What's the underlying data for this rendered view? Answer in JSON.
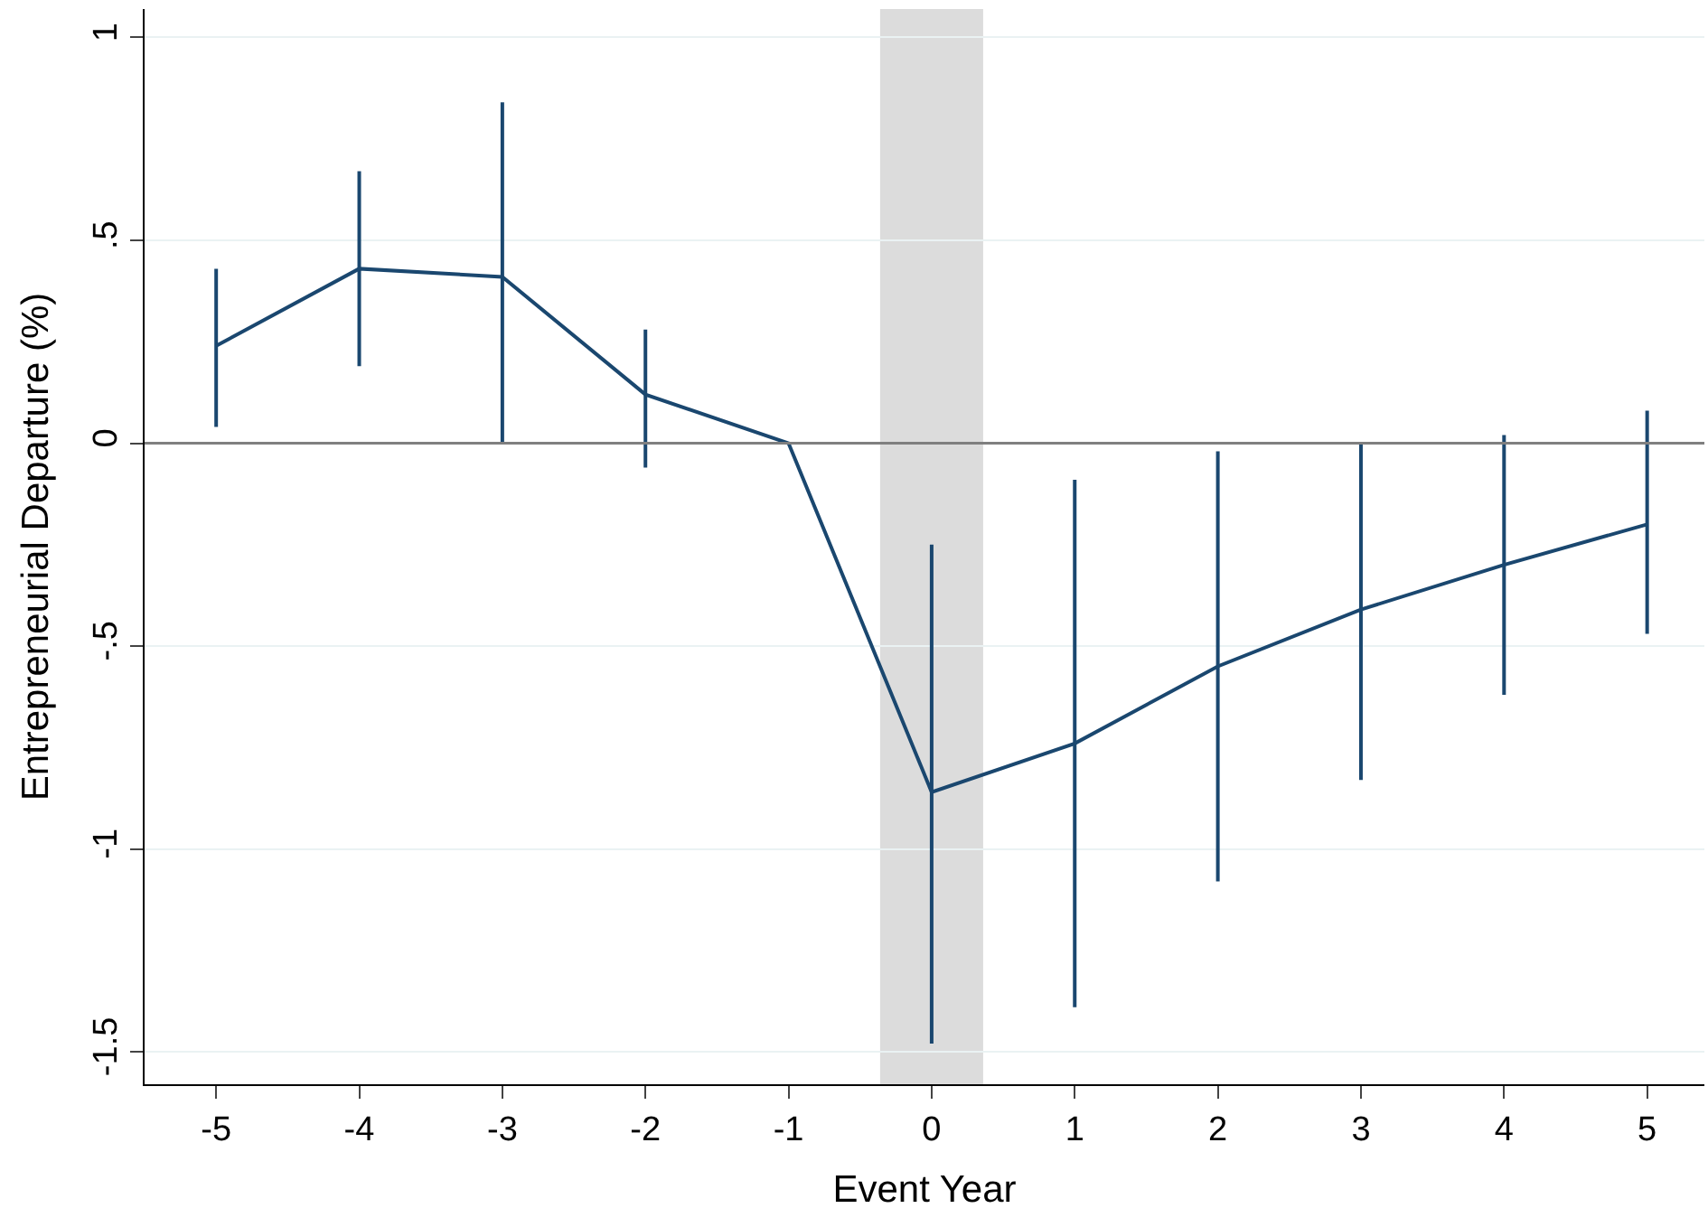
{
  "chart_data": {
    "type": "line",
    "xlabel": "Event Year",
    "ylabel": "Entrepreneurial Departure (%)",
    "x": [
      -5,
      -4,
      -3,
      -2,
      -1,
      0,
      1,
      2,
      3,
      4,
      5
    ],
    "series": [
      {
        "color": "#1a476f",
        "values": [
          0.24,
          0.43,
          0.41,
          0.12,
          0,
          -0.86,
          -0.74,
          -0.55,
          -0.41,
          -0.3,
          -0.2
        ],
        "errors": [
          [
            0.04,
            0.43
          ],
          [
            0.19,
            0.67
          ],
          [
            0.0,
            0.84
          ],
          [
            -0.06,
            0.28
          ],
          null,
          [
            -1.48,
            -0.25
          ],
          [
            -1.39,
            -0.09
          ],
          [
            -1.08,
            -0.02
          ],
          [
            -0.83,
            0.0
          ],
          [
            -0.62,
            0.02
          ],
          [
            -0.47,
            0.08
          ]
        ]
      }
    ],
    "xlim": [
      -5.5,
      5.4
    ],
    "ylim": [
      -1.58,
      1.07
    ],
    "xticks": [
      -5,
      -4,
      -3,
      -2,
      -1,
      0,
      1,
      2,
      3,
      4,
      5
    ],
    "yticks": [
      {
        "value": -1.5,
        "label": "-1.5"
      },
      -1,
      {
        "value": -0.5,
        "label": "-.5"
      },
      0,
      {
        "value": 0.5,
        "label": ".5"
      },
      1
    ],
    "ref_lines": [
      {
        "axis": "y",
        "value": 0,
        "color": "#7f7f7f"
      }
    ],
    "bands": [
      {
        "axis": "x",
        "from": -0.36,
        "to": 0.36,
        "color": "#dcdcdc"
      }
    ],
    "grid": "y",
    "legend": false,
    "marker": "none",
    "line_style": "solid"
  }
}
